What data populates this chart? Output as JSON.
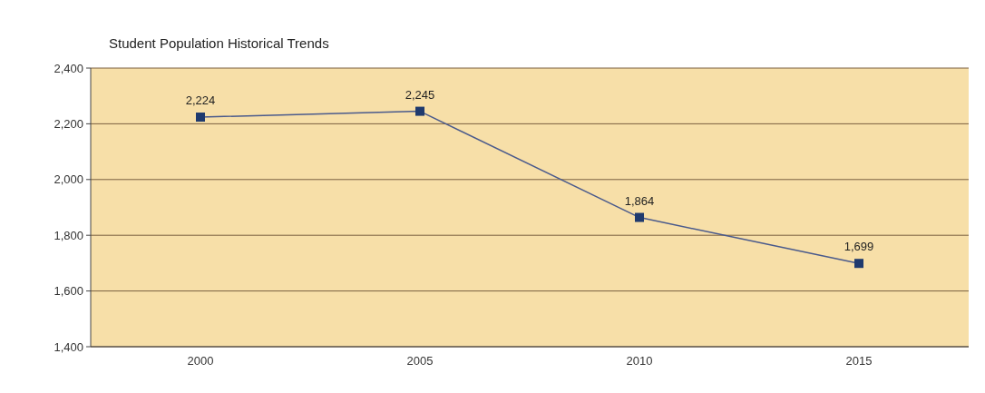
{
  "chart_data": {
    "type": "line",
    "title": "Student Population Historical Trends",
    "categories": [
      "2000",
      "2005",
      "2010",
      "2015"
    ],
    "series": [
      {
        "color": "#1f3a6e",
        "values": [
          2224,
          2245,
          1864,
          1699
        ],
        "value_labels": [
          "2,224",
          "2,245",
          "1,864",
          "1,699"
        ]
      }
    ],
    "ylim": [
      1400,
      2400
    ],
    "yticks": [
      {
        "value": 1400,
        "label": "1,400"
      },
      {
        "value": 1600,
        "label": "1,600"
      },
      {
        "value": 1800,
        "label": "1,800"
      },
      {
        "value": 2000,
        "label": "2,000"
      },
      {
        "value": 2200,
        "label": "2,200"
      },
      {
        "value": 2400,
        "label": "2,400"
      }
    ],
    "grid": "y",
    "marker": "square",
    "line_style": "solid"
  }
}
